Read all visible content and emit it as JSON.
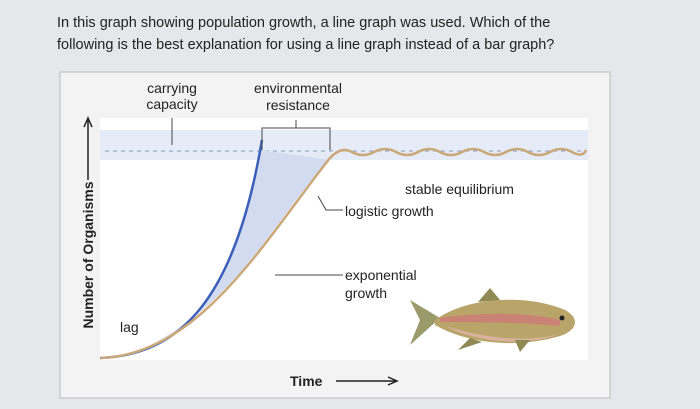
{
  "question": {
    "lines": [
      "In this graph showing population growth, a line graph was used. Which of the",
      "following is the best explanation for using a line graph instead of a bar graph?"
    ]
  },
  "diagram": {
    "carrying_capacity": [
      "carrying",
      "capacity"
    ],
    "environmental_resistance": [
      "environmental",
      "resistance"
    ],
    "stable_equilibrium": "stable equilibrium",
    "logistic_growth": "logistic growth",
    "exponential_growth": [
      "exponential",
      "growth"
    ],
    "lag": "lag",
    "y_axis_label": "Number of Organisms",
    "x_axis_label": "Time"
  }
}
